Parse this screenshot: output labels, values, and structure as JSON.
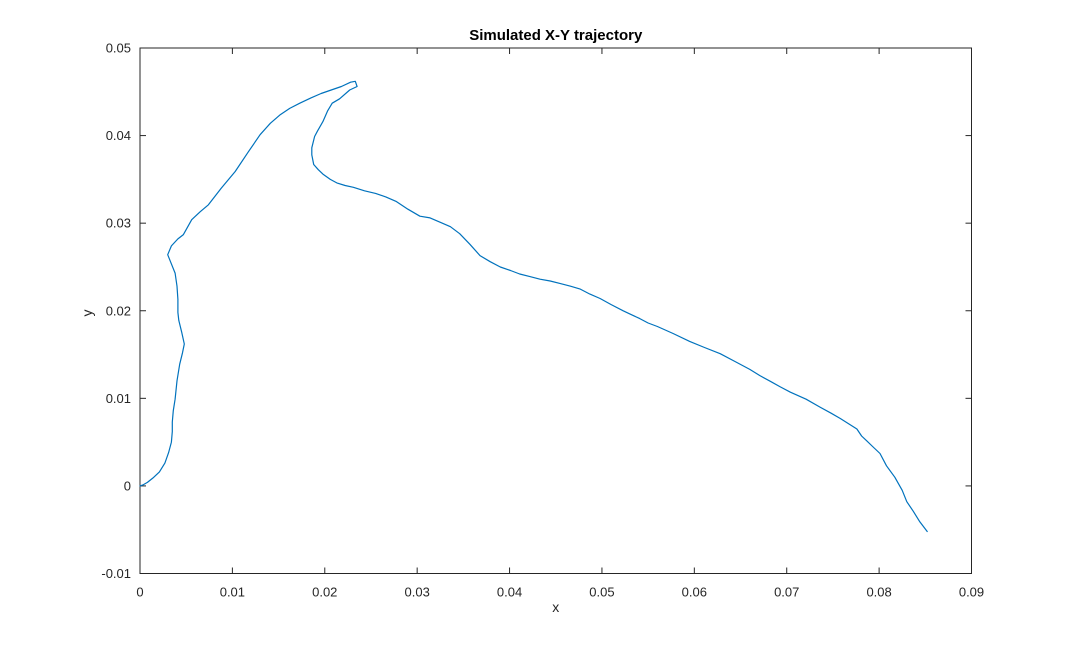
{
  "figure": {
    "background": "#ffffff"
  },
  "chart_data": {
    "type": "line",
    "title": "Simulated X-Y trajectory",
    "xlabel": "x",
    "ylabel": "y",
    "xlim": [
      0,
      0.09
    ],
    "ylim": [
      -0.01,
      0.05
    ],
    "x_ticks": [
      0,
      0.01,
      0.02,
      0.03,
      0.04,
      0.05,
      0.06,
      0.07,
      0.08,
      0.09
    ],
    "x_tick_labels": [
      "0",
      "0.01",
      "0.02",
      "0.03",
      "0.04",
      "0.05",
      "0.06",
      "0.07",
      "0.08",
      "0.09"
    ],
    "y_ticks": [
      -0.01,
      0,
      0.01,
      0.02,
      0.03,
      0.04,
      0.05
    ],
    "y_tick_labels": [
      "-0.01",
      "0",
      "0.01",
      "0.02",
      "0.03",
      "0.04",
      "0.05"
    ],
    "grid": false,
    "legend": null,
    "box": true,
    "tick_direction": "in",
    "line_color": "#0072BD",
    "axis_color": "#262626",
    "series": [
      {
        "name": "trajectory",
        "points": [
          [
            0.0,
            0.0
          ],
          [
            0.0003,
            0.0001
          ],
          [
            0.0008,
            0.0004
          ],
          [
            0.0014,
            0.0009
          ],
          [
            0.0021,
            0.0016
          ],
          [
            0.0027,
            0.0026
          ],
          [
            0.0031,
            0.0038
          ],
          [
            0.0034,
            0.005
          ],
          [
            0.0035,
            0.0062
          ],
          [
            0.0035,
            0.0073
          ],
          [
            0.0036,
            0.0086
          ],
          [
            0.0038,
            0.0099
          ],
          [
            0.004,
            0.012
          ],
          [
            0.0043,
            0.0139
          ],
          [
            0.0046,
            0.0152
          ],
          [
            0.0048,
            0.0162
          ],
          [
            0.0045,
            0.0176
          ],
          [
            0.0042,
            0.0189
          ],
          [
            0.0041,
            0.0198
          ],
          [
            0.0041,
            0.0213
          ],
          [
            0.004,
            0.0228
          ],
          [
            0.0038,
            0.0243
          ],
          [
            0.0033,
            0.0256
          ],
          [
            0.003,
            0.0264
          ],
          [
            0.0034,
            0.0274
          ],
          [
            0.0041,
            0.0282
          ],
          [
            0.0047,
            0.0287
          ],
          [
            0.0056,
            0.0304
          ],
          [
            0.0065,
            0.0313
          ],
          [
            0.0074,
            0.0321
          ],
          [
            0.0088,
            0.034
          ],
          [
            0.0103,
            0.0359
          ],
          [
            0.0117,
            0.0381
          ],
          [
            0.013,
            0.0401
          ],
          [
            0.0141,
            0.0414
          ],
          [
            0.0152,
            0.0424
          ],
          [
            0.0162,
            0.0431
          ],
          [
            0.0173,
            0.0437
          ],
          [
            0.0185,
            0.0443
          ],
          [
            0.0196,
            0.0448
          ],
          [
            0.0207,
            0.0452
          ],
          [
            0.0218,
            0.0456
          ],
          [
            0.0228,
            0.0461
          ],
          [
            0.0233,
            0.0462
          ],
          [
            0.0235,
            0.0456
          ],
          [
            0.0227,
            0.0452
          ],
          [
            0.0216,
            0.0442
          ],
          [
            0.0208,
            0.0437
          ],
          [
            0.0203,
            0.0428
          ],
          [
            0.0198,
            0.0416
          ],
          [
            0.0192,
            0.0405
          ],
          [
            0.0189,
            0.0399
          ],
          [
            0.0186,
            0.0386
          ],
          [
            0.0186,
            0.0378
          ],
          [
            0.0188,
            0.0367
          ],
          [
            0.0193,
            0.0361
          ],
          [
            0.0198,
            0.0356
          ],
          [
            0.0206,
            0.035
          ],
          [
            0.0213,
            0.0346
          ],
          [
            0.0222,
            0.0343
          ],
          [
            0.0231,
            0.0341
          ],
          [
            0.0243,
            0.0337
          ],
          [
            0.0255,
            0.0334
          ],
          [
            0.0266,
            0.033
          ],
          [
            0.0277,
            0.0325
          ],
          [
            0.029,
            0.0316
          ],
          [
            0.0303,
            0.0308
          ],
          [
            0.0314,
            0.0306
          ],
          [
            0.0325,
            0.0301
          ],
          [
            0.0336,
            0.0296
          ],
          [
            0.0346,
            0.0288
          ],
          [
            0.0357,
            0.0276
          ],
          [
            0.0368,
            0.0263
          ],
          [
            0.0379,
            0.0256
          ],
          [
            0.039,
            0.025
          ],
          [
            0.0401,
            0.0246
          ],
          [
            0.0411,
            0.0242
          ],
          [
            0.0422,
            0.0239
          ],
          [
            0.0433,
            0.0236
          ],
          [
            0.0444,
            0.0234
          ],
          [
            0.0455,
            0.0231
          ],
          [
            0.0466,
            0.0228
          ],
          [
            0.0476,
            0.0225
          ],
          [
            0.0487,
            0.0219
          ],
          [
            0.0498,
            0.0214
          ],
          [
            0.051,
            0.0207
          ],
          [
            0.0523,
            0.02
          ],
          [
            0.0531,
            0.0196
          ],
          [
            0.0541,
            0.0191
          ],
          [
            0.055,
            0.0186
          ],
          [
            0.056,
            0.0182
          ],
          [
            0.0577,
            0.0174
          ],
          [
            0.0595,
            0.0165
          ],
          [
            0.0611,
            0.0158
          ],
          [
            0.0628,
            0.0151
          ],
          [
            0.0644,
            0.0142
          ],
          [
            0.066,
            0.0133
          ],
          [
            0.0671,
            0.0126
          ],
          [
            0.0683,
            0.0119
          ],
          [
            0.0693,
            0.0113
          ],
          [
            0.0704,
            0.0107
          ],
          [
            0.0721,
            0.0099
          ],
          [
            0.0736,
            0.009
          ],
          [
            0.0748,
            0.0083
          ],
          [
            0.0758,
            0.0077
          ],
          [
            0.0767,
            0.0071
          ],
          [
            0.0776,
            0.0065
          ],
          [
            0.0781,
            0.0057
          ],
          [
            0.0787,
            0.0051
          ],
          [
            0.0793,
            0.0045
          ],
          [
            0.0801,
            0.0037
          ],
          [
            0.0808,
            0.0023
          ],
          [
            0.0817,
            0.001
          ],
          [
            0.0825,
            -0.0005
          ],
          [
            0.083,
            -0.0018
          ],
          [
            0.0837,
            -0.0029
          ],
          [
            0.0844,
            -0.0041
          ],
          [
            0.0852,
            -0.0052
          ]
        ]
      }
    ]
  }
}
